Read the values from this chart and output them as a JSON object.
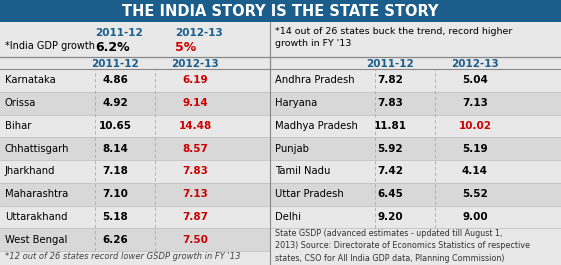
{
  "title": "THE INDIA STORY IS THE STATE STORY",
  "title_bg": "#1b5e8c",
  "title_color": "#ffffff",
  "india_gdp_label": "*India GDP growth",
  "india_gdp_2011": "6.2%",
  "india_gdp_2012": "5%",
  "note_top": "*14 out of 26 states buck the trend, record higher\ngrowth in FY '13",
  "note_bottom_left": "*12 out of 26 states record lower GSDP growth in FY '13",
  "note_bottom_right": "State GSDP (advanced estimates - updated till August 1,\n2013) Source: Directorate of Economics Statistics of respective\nstates, CSO for All India GDP data, Planning Commission)",
  "col_header_color": "#1b5e8c",
  "val_red_color": "#cc0000",
  "bg_color": "#e8e8e8",
  "row_alt_color": "#d8d8d8",
  "divider_color": "#aaaaaa",
  "left_states": [
    "Karnataka",
    "Orissa",
    "Bihar",
    "Chhattisgarh",
    "Jharkhand",
    "Maharashtra",
    "Uttarakhand",
    "West Bengal"
  ],
  "left_2011": [
    "4.86",
    "4.92",
    "10.65",
    "8.14",
    "7.18",
    "7.10",
    "5.18",
    "6.26"
  ],
  "left_2012": [
    "6.19",
    "9.14",
    "14.48",
    "8.57",
    "7.83",
    "7.13",
    "7.87",
    "7.50"
  ],
  "left_2012_red": [
    true,
    true,
    true,
    true,
    true,
    true,
    true,
    true
  ],
  "right_states": [
    "Andhra Pradesh",
    "Haryana",
    "Madhya Pradesh",
    "Punjab",
    "Tamil Nadu",
    "Uttar Pradesh",
    "Delhi"
  ],
  "right_2011": [
    "7.82",
    "7.83",
    "11.81",
    "5.92",
    "7.42",
    "6.45",
    "9.20"
  ],
  "right_2012": [
    "5.04",
    "7.13",
    "10.02",
    "5.19",
    "4.14",
    "5.52",
    "9.00"
  ],
  "right_2012_red": [
    false,
    false,
    true,
    false,
    false,
    false,
    false
  ]
}
